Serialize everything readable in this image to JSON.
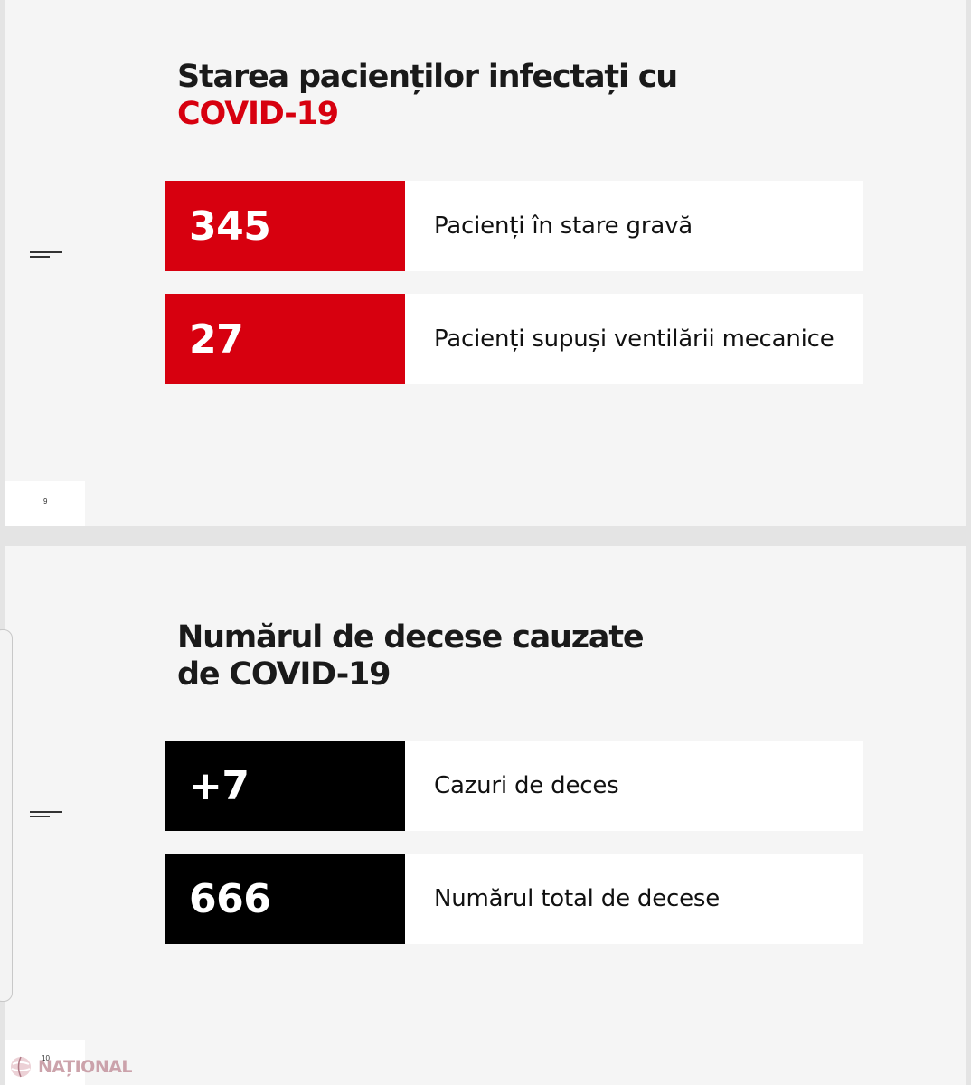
{
  "slides": [
    {
      "title_line_1": "Starea pacienților infectați cu",
      "title_line_2": "COVID-19",
      "page_number": "9",
      "stats": [
        {
          "value": "345",
          "label": "Pacienți în stare gravă"
        },
        {
          "value": "27",
          "label": "Pacienți supuși ventilării mecanice"
        }
      ]
    },
    {
      "title_line_1": "Numărul de decese cauzate",
      "title_line_2": "de COVID-19",
      "page_number": "10",
      "stats": [
        {
          "value": "+7",
          "label": "Cazuri de deces"
        },
        {
          "value": "666",
          "label": "Numărul total de decese"
        }
      ]
    }
  ],
  "watermark": {
    "text": "NAȚIONAL",
    "icon": "globe-logo-icon"
  },
  "colors": {
    "accent_red": "#d7000f",
    "value_black": "#000000",
    "slide_background": "#f5f5f5",
    "viewer_background": "#e4e4e4"
  }
}
